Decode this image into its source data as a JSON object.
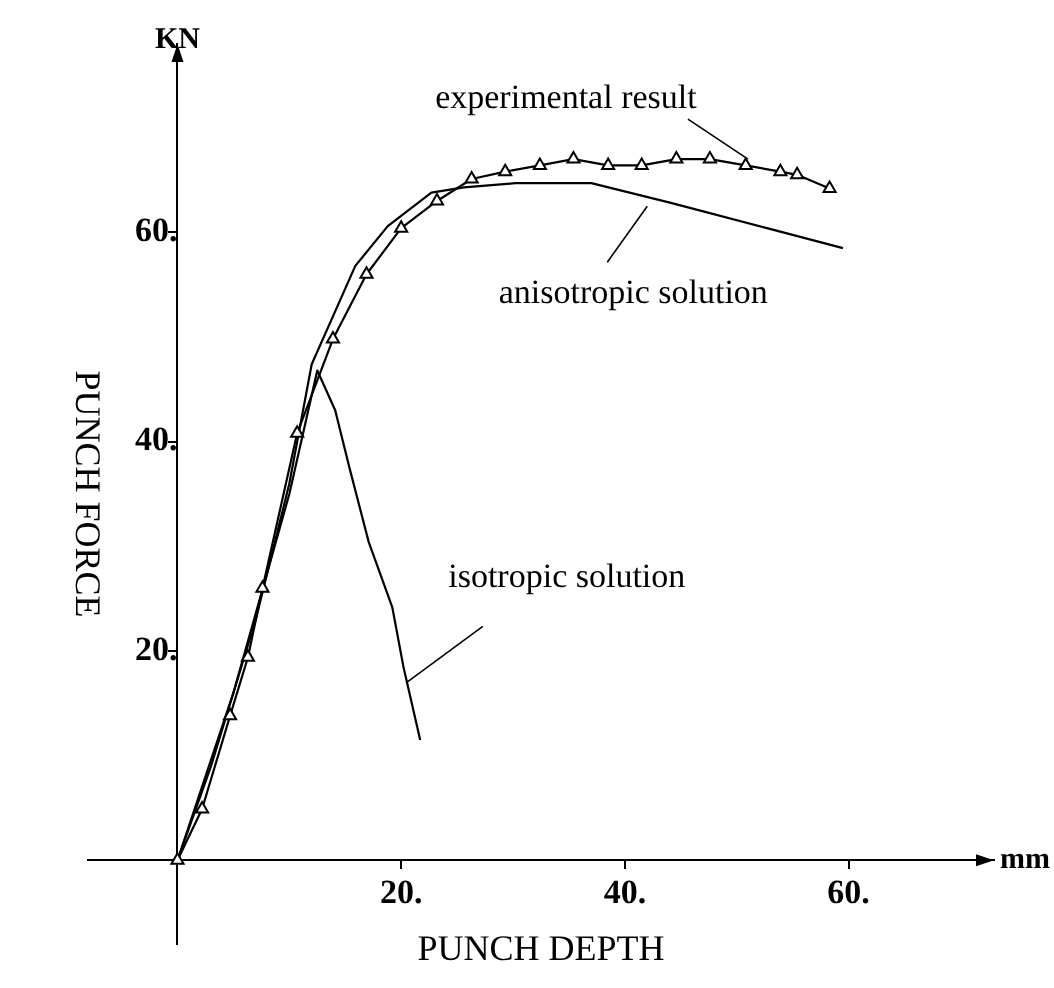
{
  "chart_data": {
    "type": "line",
    "xlabel": "PUNCH DEPTH",
    "ylabel": "PUNCH FORCE",
    "xlim": [
      -8,
      73
    ],
    "ylim": [
      -8,
      78
    ],
    "xticks": [
      {
        "value": 20,
        "label": "20."
      },
      {
        "value": 40,
        "label": "40."
      },
      {
        "value": 60,
        "label": "60."
      }
    ],
    "yticks": [
      {
        "value": 20,
        "label": "20."
      },
      {
        "value": 40,
        "label": "40."
      },
      {
        "value": 60,
        "label": "60."
      }
    ],
    "grid": false,
    "legend": false,
    "series": [
      {
        "color": "#000000",
        "marker": "triangle",
        "x": [
          0,
          2.2,
          4.7,
          6.3,
          7.6,
          10.7,
          13.9,
          16.9,
          20.0,
          23.2,
          26.3,
          29.3,
          32.4,
          35.4,
          38.5,
          41.5,
          44.6,
          47.6,
          50.8,
          53.9,
          55.4,
          58.3
        ],
        "values": [
          0,
          4.9,
          13.8,
          19.4,
          26.0,
          40.8,
          49.8,
          56.0,
          60.4,
          63.0,
          65.1,
          65.8,
          66.4,
          67.0,
          66.4,
          66.4,
          67.0,
          67.0,
          66.4,
          65.8,
          65.5,
          64.2
        ]
      },
      {
        "color": "#000000",
        "marker": "none",
        "x": [
          0,
          3,
          7,
          10,
          12,
          15.9,
          18.8,
          22.7,
          25.6,
          30.2,
          37,
          44.2,
          52.7,
          59.5
        ],
        "values": [
          0,
          9,
          23,
          36,
          47.4,
          56.8,
          60.6,
          63.8,
          64.3,
          64.7,
          64.7,
          62.8,
          60.4,
          58.5
        ]
      },
      {
        "color": "#000000",
        "marker": "none",
        "x": [
          0,
          5,
          10,
          12.5,
          14.1,
          15.4,
          17.1,
          19.2,
          20.2,
          21.7
        ],
        "values": [
          0,
          16,
          35,
          46.8,
          43,
          37.4,
          30.4,
          24.2,
          18.5,
          11.5
        ]
      }
    ],
    "annotations": [
      "KN",
      "mm",
      {
        "text": "experimental result",
        "x": 51,
        "y": 67
      },
      {
        "text": "anisotropic solution",
        "x": 42,
        "y": 62.5
      },
      {
        "text": "isotropic solution",
        "x": 20.5,
        "y": 17
      }
    ]
  }
}
